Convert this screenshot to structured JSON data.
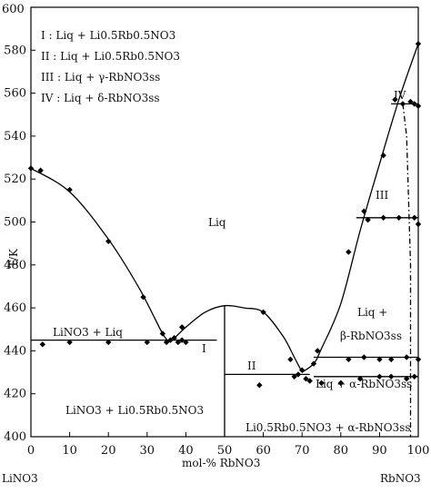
{
  "chart_data": {
    "type": "scatter",
    "title": "",
    "xlabel": "mol-% RbNO3",
    "ylabel": "T/K",
    "xlim": [
      0,
      100
    ],
    "ylim": [
      400,
      600
    ],
    "x_ticks": [
      0,
      10,
      20,
      30,
      40,
      50,
      60,
      70,
      80,
      90,
      100
    ],
    "y_ticks": [
      400,
      420,
      440,
      460,
      480,
      500,
      520,
      540,
      560,
      580,
      600
    ],
    "x_end_labels": {
      "left": "LiNO3",
      "right": "RbNO3"
    },
    "legend": [
      "I : Liq + Li0.5Rb0.5NO3",
      "II : Liq + Li0.5Rb0.5NO3",
      "III : Liq + γ-RbNO3ss",
      "IV : Liq + δ-RbNO3ss"
    ],
    "region_labels": {
      "liq": "Liq",
      "I": "I",
      "II": "II",
      "III": "III",
      "IV": "IV",
      "lino3_liq": "LiNO3 + Liq",
      "lino3_compound": "LiNO3 + Li0.5Rb0.5NO3",
      "liq_beta_1": "Liq +",
      "liq_beta_2": "β-RbNO3ss",
      "liq_alpha": "Liq + α-RbNO3ss",
      "compound_alpha": "Li0.5Rb0.5NO3 + α-RbNO3ss"
    },
    "points": [
      {
        "x": 0,
        "y": 525
      },
      {
        "x": 2.5,
        "y": 524
      },
      {
        "x": 10,
        "y": 515
      },
      {
        "x": 20,
        "y": 491
      },
      {
        "x": 29,
        "y": 465
      },
      {
        "x": 34,
        "y": 448
      },
      {
        "x": 39,
        "y": 451
      },
      {
        "x": 3,
        "y": 443
      },
      {
        "x": 10,
        "y": 444
      },
      {
        "x": 20,
        "y": 444
      },
      {
        "x": 30,
        "y": 444
      },
      {
        "x": 35,
        "y": 444
      },
      {
        "x": 36,
        "y": 445
      },
      {
        "x": 37,
        "y": 446
      },
      {
        "x": 38,
        "y": 444
      },
      {
        "x": 39,
        "y": 445
      },
      {
        "x": 40,
        "y": 444
      },
      {
        "x": 59,
        "y": 424
      },
      {
        "x": 60,
        "y": 458
      },
      {
        "x": 67,
        "y": 436
      },
      {
        "x": 68,
        "y": 428
      },
      {
        "x": 69,
        "y": 429
      },
      {
        "x": 70,
        "y": 431
      },
      {
        "x": 71,
        "y": 427
      },
      {
        "x": 72,
        "y": 426
      },
      {
        "x": 73,
        "y": 434
      },
      {
        "x": 74,
        "y": 440
      },
      {
        "x": 75,
        "y": 425
      },
      {
        "x": 80,
        "y": 425
      },
      {
        "x": 82,
        "y": 486
      },
      {
        "x": 86,
        "y": 505
      },
      {
        "x": 85,
        "y": 427
      },
      {
        "x": 90,
        "y": 428
      },
      {
        "x": 93,
        "y": 428
      },
      {
        "x": 97,
        "y": 427
      },
      {
        "x": 99,
        "y": 428
      },
      {
        "x": 82,
        "y": 436
      },
      {
        "x": 86,
        "y": 437
      },
      {
        "x": 90,
        "y": 436
      },
      {
        "x": 93,
        "y": 436
      },
      {
        "x": 97,
        "y": 437
      },
      {
        "x": 100,
        "y": 436
      },
      {
        "x": 87,
        "y": 501
      },
      {
        "x": 91,
        "y": 502
      },
      {
        "x": 95,
        "y": 502
      },
      {
        "x": 99,
        "y": 502
      },
      {
        "x": 100,
        "y": 499
      },
      {
        "x": 91,
        "y": 531
      },
      {
        "x": 94,
        "y": 557
      },
      {
        "x": 96,
        "y": 555
      },
      {
        "x": 98,
        "y": 556
      },
      {
        "x": 99,
        "y": 555
      },
      {
        "x": 100,
        "y": 554
      },
      {
        "x": 100,
        "y": 583
      }
    ],
    "curves": [
      {
        "name": "",
        "style": "solid",
        "points": [
          [
            0,
            525
          ],
          [
            10,
            514
          ],
          [
            20,
            492
          ],
          [
            28,
            469
          ],
          [
            34,
            448
          ],
          [
            36,
            444
          ]
        ]
      },
      {
        "name": "",
        "style": "solid",
        "points": [
          [
            36,
            444
          ],
          [
            40,
            451
          ],
          [
            45,
            458
          ],
          [
            50,
            461
          ],
          [
            55,
            460
          ],
          [
            60,
            458
          ],
          [
            65,
            447
          ],
          [
            68,
            437
          ],
          [
            70,
            430
          ]
        ]
      },
      {
        "name": "",
        "style": "solid",
        "points": [
          [
            70,
            430
          ],
          [
            73,
            434
          ],
          [
            75,
            441
          ],
          [
            80,
            462
          ],
          [
            85,
            496
          ],
          [
            90,
            527
          ],
          [
            95,
            557
          ],
          [
            100,
            583
          ]
        ]
      },
      {
        "name": "",
        "style": "solid",
        "points": [
          [
            0,
            445
          ],
          [
            48,
            445
          ]
        ]
      },
      {
        "name": "",
        "style": "solid",
        "points": [
          [
            50,
            429
          ],
          [
            72,
            429
          ]
        ]
      },
      {
        "name": "",
        "style": "solid",
        "points": [
          [
            50,
            400
          ],
          [
            50,
            461
          ]
        ]
      },
      {
        "name": "",
        "style": "solid",
        "points": [
          [
            73,
            437
          ],
          [
            100,
            437
          ]
        ]
      },
      {
        "name": "",
        "style": "solid",
        "points": [
          [
            73,
            428
          ],
          [
            100,
            428
          ]
        ]
      },
      {
        "name": "",
        "style": "solid",
        "points": [
          [
            84,
            502
          ],
          [
            100,
            502
          ]
        ]
      },
      {
        "name": "",
        "style": "solid",
        "points": [
          [
            93,
            555
          ],
          [
            100,
            555
          ]
        ]
      },
      {
        "name": "",
        "style": "dashdot",
        "points": [
          [
            96,
            555
          ],
          [
            97,
            540
          ],
          [
            98,
            480
          ],
          [
            98,
            420
          ],
          [
            98,
            400
          ]
        ]
      }
    ]
  }
}
